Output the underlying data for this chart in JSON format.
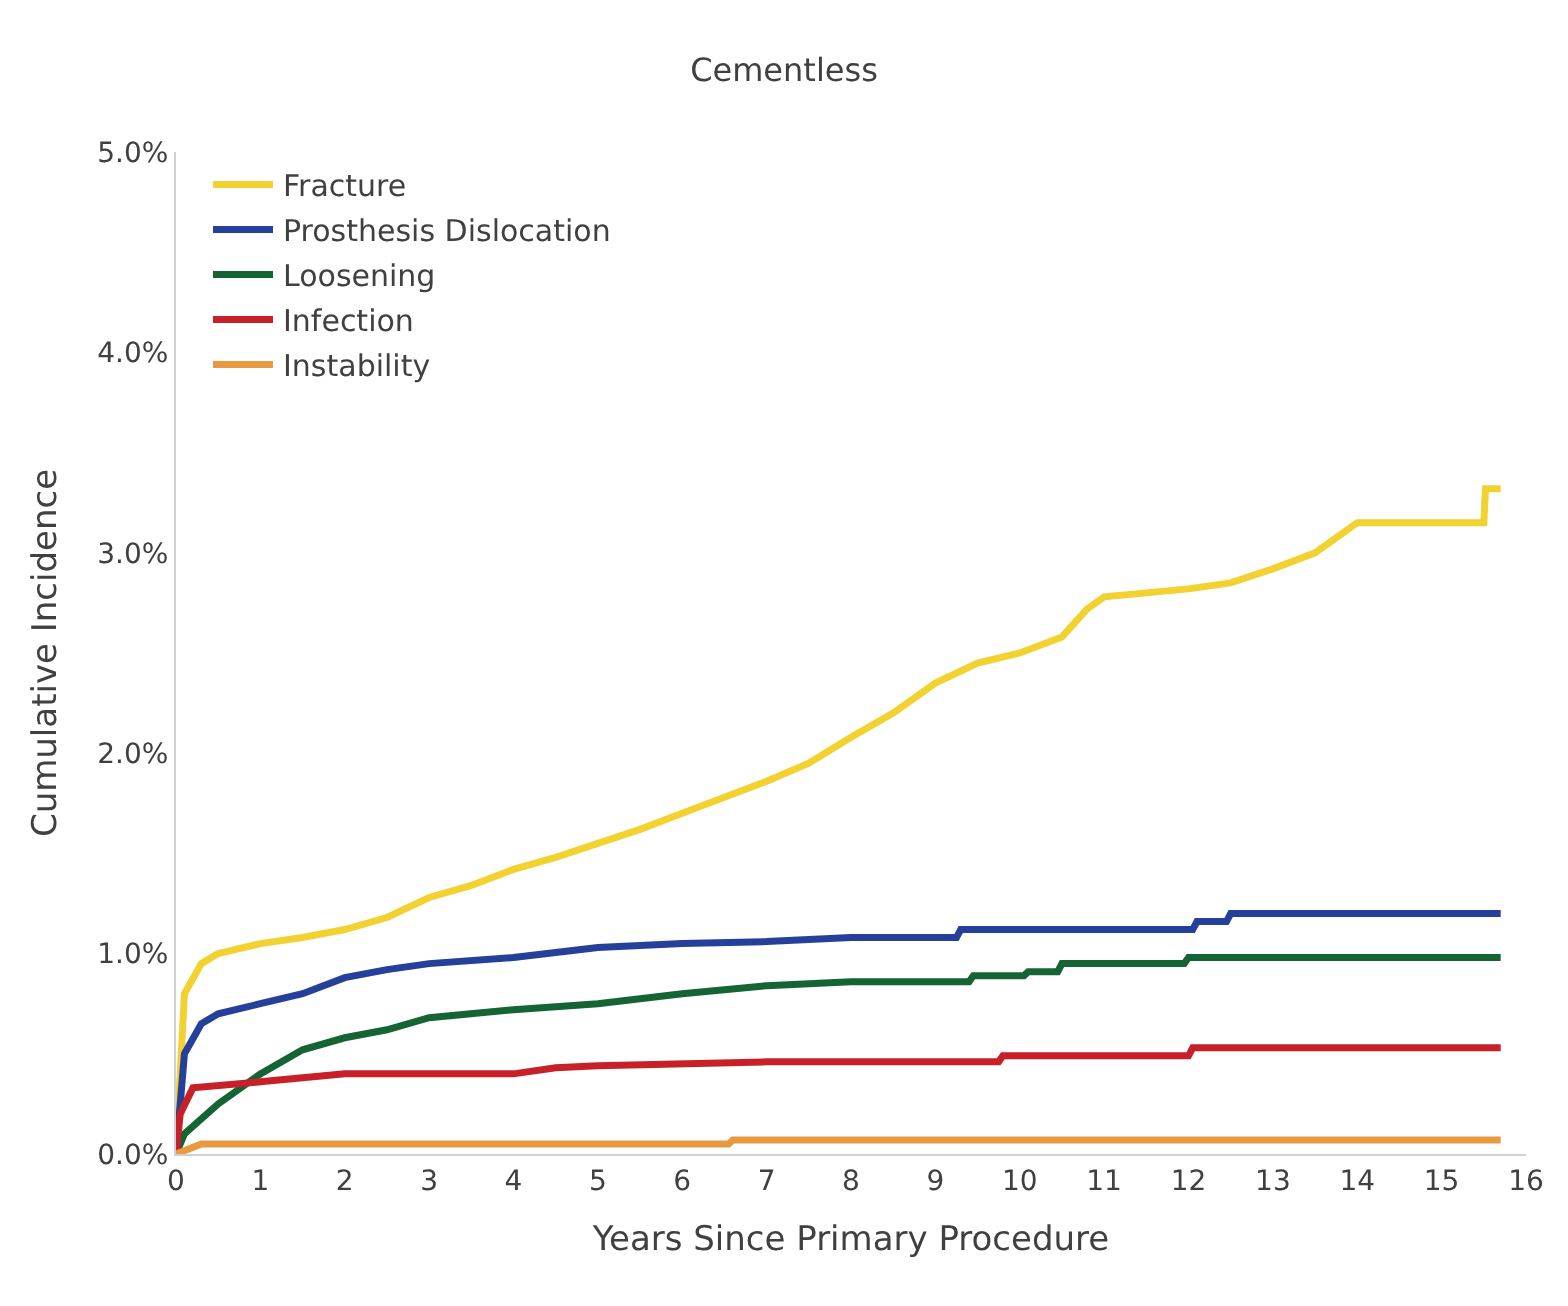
{
  "chart_data": {
    "type": "line",
    "title": "Cementless",
    "xlabel": "Years Since Primary Procedure",
    "ylabel": "Cumulative Incidence",
    "xlim": [
      0,
      16
    ],
    "xticks": [
      0,
      1,
      2,
      3,
      4,
      5,
      6,
      7,
      8,
      9,
      10,
      11,
      12,
      13,
      14,
      15,
      16
    ],
    "ylim": [
      0,
      5
    ],
    "yticks": [
      {
        "value": 0,
        "label": "0.0%"
      },
      {
        "value": 1,
        "label": "1.0%"
      },
      {
        "value": 2,
        "label": "2.0%"
      },
      {
        "value": 3,
        "label": "3.0%"
      },
      {
        "value": 4,
        "label": "4.0%"
      },
      {
        "value": 5,
        "label": "5.0%"
      }
    ],
    "legend": "top left",
    "marker": "none",
    "line_style": "solid",
    "series": [
      {
        "name": "Fracture",
        "color": "#f2d230",
        "x": [
          0,
          0.1,
          0.3,
          0.5,
          1,
          1.5,
          2,
          2.5,
          3,
          3.5,
          4,
          4.5,
          5,
          5.5,
          6,
          6.5,
          7,
          7.5,
          8,
          8.5,
          9,
          9.5,
          10,
          10.5,
          10.8,
          11,
          11.5,
          12,
          12.5,
          13,
          13.5,
          14,
          15.5,
          15.52,
          15.7
        ],
        "values": [
          0,
          0.8,
          0.95,
          1.0,
          1.05,
          1.08,
          1.12,
          1.18,
          1.28,
          1.34,
          1.42,
          1.48,
          1.55,
          1.62,
          1.7,
          1.78,
          1.86,
          1.95,
          2.08,
          2.2,
          2.35,
          2.45,
          2.5,
          2.58,
          2.72,
          2.78,
          2.8,
          2.82,
          2.85,
          2.92,
          3.0,
          3.15,
          3.15,
          3.32,
          3.32
        ]
      },
      {
        "name": "Prosthesis Dislocation",
        "color": "#24409a",
        "x": [
          0,
          0.1,
          0.3,
          0.5,
          1,
          1.5,
          2,
          2.5,
          3,
          4,
          5,
          6,
          7,
          8,
          9.25,
          9.3,
          12.05,
          12.1,
          12.45,
          12.5,
          15.7
        ],
        "values": [
          0,
          0.5,
          0.65,
          0.7,
          0.75,
          0.8,
          0.88,
          0.92,
          0.95,
          0.98,
          1.03,
          1.05,
          1.06,
          1.08,
          1.08,
          1.12,
          1.12,
          1.16,
          1.16,
          1.2,
          1.2
        ]
      },
      {
        "name": "Loosening",
        "color": "#146434",
        "x": [
          0,
          0.1,
          0.5,
          1,
          1.5,
          2,
          2.5,
          3,
          4,
          5,
          6,
          7,
          8,
          9.4,
          9.45,
          10.05,
          10.1,
          10.45,
          10.5,
          11.95,
          12.0,
          15.7
        ],
        "values": [
          0,
          0.1,
          0.25,
          0.4,
          0.52,
          0.58,
          0.62,
          0.68,
          0.72,
          0.75,
          0.8,
          0.84,
          0.86,
          0.86,
          0.89,
          0.89,
          0.91,
          0.91,
          0.95,
          0.95,
          0.98,
          0.98
        ]
      },
      {
        "name": "Infection",
        "color": "#c82028",
        "x": [
          0,
          0.05,
          0.2,
          1,
          2,
          4,
          4.5,
          5,
          7,
          9.75,
          9.8,
          12.0,
          12.05,
          15.7
        ],
        "values": [
          0,
          0.2,
          0.33,
          0.36,
          0.4,
          0.4,
          0.43,
          0.44,
          0.46,
          0.46,
          0.49,
          0.49,
          0.53,
          0.53
        ]
      },
      {
        "name": "Instability",
        "color": "#e89a40",
        "x": [
          0,
          0.3,
          6.55,
          6.6,
          15.7
        ],
        "values": [
          0,
          0.05,
          0.05,
          0.07,
          0.07
        ]
      }
    ]
  }
}
